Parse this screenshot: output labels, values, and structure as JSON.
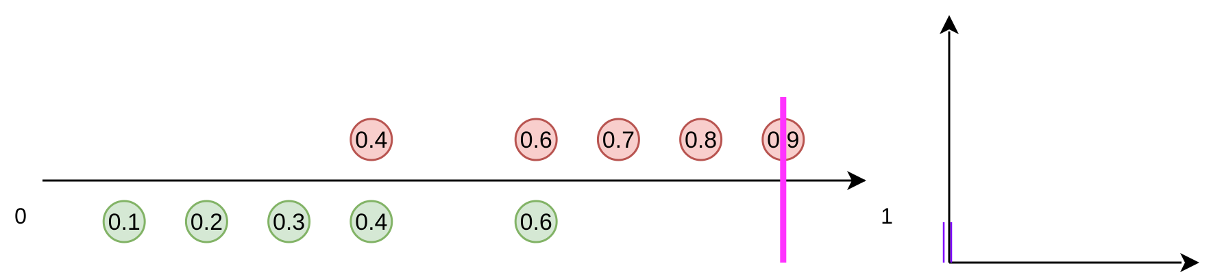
{
  "number_line": {
    "start_label": "0",
    "end_label": "1"
  },
  "positive_circles": [
    {
      "label": "0.4",
      "value": 0.4
    },
    {
      "label": "0.6",
      "value": 0.6
    },
    {
      "label": "0.7",
      "value": 0.7
    },
    {
      "label": "0.8",
      "value": 0.8
    },
    {
      "label": "0.9",
      "value": 0.9
    }
  ],
  "negative_circles": [
    {
      "label": "0.1",
      "value": 0.1
    },
    {
      "label": "0.2",
      "value": 0.2
    },
    {
      "label": "0.3",
      "value": 0.3
    },
    {
      "label": "0.4",
      "value": 0.4
    },
    {
      "label": "0.6",
      "value": 0.6
    }
  ],
  "threshold": {
    "value": 0.9,
    "color": "#ff33ff"
  },
  "colors": {
    "positive_fill": "#f8cecc",
    "positive_stroke": "#b85450",
    "negative_fill": "#d5e8d4",
    "negative_stroke": "#82b366",
    "axis": "#000000",
    "marker": "#7f00ff"
  }
}
